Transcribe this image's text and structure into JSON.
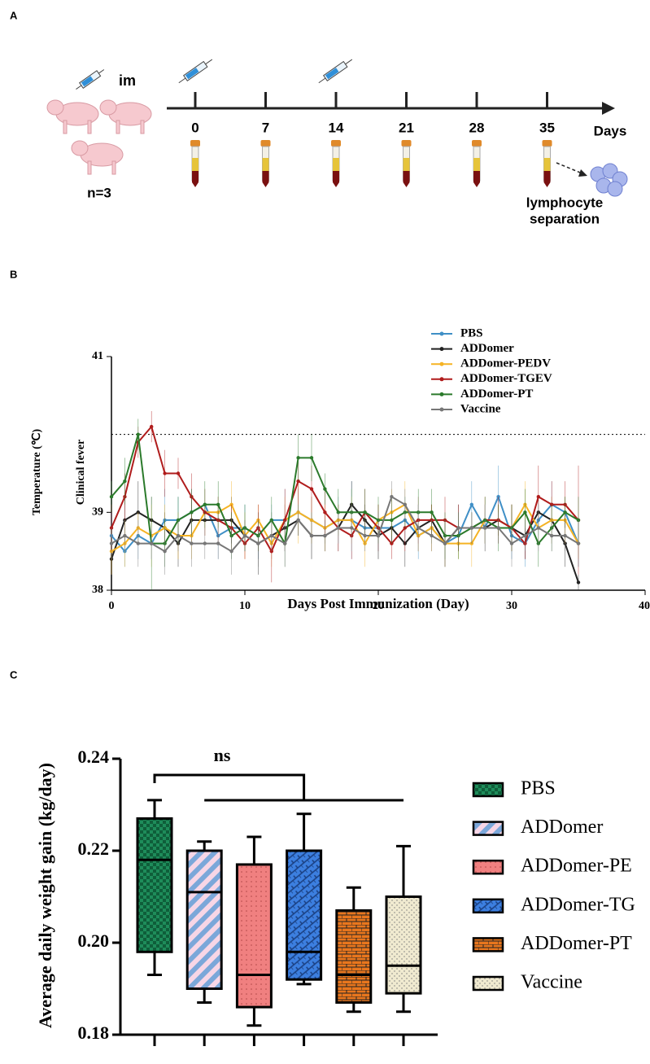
{
  "panel_labels": [
    "A",
    "B",
    "C"
  ],
  "diagram": {
    "route": "im",
    "group_size": "n=3",
    "days": [
      0,
      7,
      14,
      21,
      28,
      35
    ],
    "axis_label": "Days",
    "endpoint": [
      "lymphocyte",
      "separation"
    ]
  },
  "chart_data": [
    {
      "type": "line",
      "xlabel": "Days Post Immunization (Day)",
      "ylabel": "Temperature (℃)",
      "threshold": 40,
      "threshold_label": "Clinical fever",
      "xlim": [
        0,
        40
      ],
      "xticks": [
        0,
        10,
        20,
        30,
        40
      ],
      "ylim": [
        38,
        41
      ],
      "yticks": [
        38,
        39,
        41
      ],
      "x": [
        0,
        1,
        2,
        3,
        4,
        5,
        6,
        7,
        8,
        9,
        10,
        11,
        12,
        13,
        14,
        15,
        16,
        17,
        18,
        19,
        20,
        21,
        22,
        23,
        24,
        25,
        26,
        27,
        28,
        29,
        30,
        31,
        32,
        33,
        34,
        35
      ],
      "series": [
        {
          "name": "PBS",
          "color": "#3f8fc6",
          "values": [
            38.7,
            38.5,
            38.7,
            38.6,
            38.9,
            38.9,
            39.0,
            39.1,
            38.7,
            38.8,
            38.8,
            38.7,
            38.9,
            38.9,
            39.0,
            38.9,
            38.8,
            38.9,
            38.9,
            38.8,
            38.8,
            38.8,
            38.9,
            38.7,
            38.8,
            38.6,
            38.7,
            39.1,
            38.8,
            39.2,
            38.7,
            38.6,
            38.9,
            39.1,
            39.0,
            38.6
          ],
          "errors": [
            0.3,
            0.2,
            0.3,
            0.2,
            0.4,
            0.3,
            0.3,
            0.2,
            0.3,
            0.2,
            0.3,
            0.3,
            0.2,
            0.4,
            0.3,
            0.3,
            0.2,
            0.3,
            0.5,
            0.2,
            0.3,
            0.2,
            0.3,
            0.3,
            0.2,
            0.3,
            0.2,
            0.3,
            0.2,
            0.4,
            0.3,
            0.3,
            0.2,
            0.3,
            0.2,
            0.3
          ]
        },
        {
          "name": "ADDomer",
          "color": "#222222",
          "values": [
            38.4,
            38.9,
            39.0,
            38.9,
            38.8,
            38.6,
            38.9,
            38.9,
            38.9,
            38.9,
            38.7,
            38.6,
            38.7,
            38.8,
            38.9,
            38.7,
            38.7,
            38.8,
            39.1,
            38.9,
            38.7,
            38.8,
            38.6,
            38.8,
            38.9,
            38.6,
            38.8,
            38.8,
            38.8,
            38.9,
            38.8,
            38.7,
            39.0,
            38.9,
            38.6,
            38.1
          ],
          "errors": [
            0.2,
            0.3,
            0.4,
            0.3,
            0.2,
            0.3,
            0.3,
            0.2,
            0.3,
            0.3,
            0.2,
            0.4,
            0.3,
            0.3,
            0.2,
            0.3,
            0.2,
            0.3,
            0.3,
            0.2,
            0.3,
            0.2,
            0.3,
            0.3,
            0.2,
            0.3,
            0.3,
            0.2,
            0.3,
            0.2,
            0.3,
            0.3,
            0.2,
            0.3,
            0.3,
            0.1
          ]
        },
        {
          "name": "ADDomer-PEDV",
          "color": "#f5b324",
          "values": [
            38.5,
            38.6,
            38.8,
            38.7,
            38.8,
            38.7,
            38.7,
            39.0,
            39.0,
            39.1,
            38.7,
            38.9,
            38.6,
            38.9,
            39.0,
            38.9,
            38.8,
            38.9,
            38.9,
            38.6,
            38.9,
            39.0,
            39.1,
            38.7,
            38.8,
            38.6,
            38.6,
            38.6,
            38.9,
            38.9,
            38.8,
            39.1,
            38.8,
            38.9,
            38.9,
            38.6
          ],
          "errors": [
            0.3,
            0.3,
            0.2,
            0.4,
            0.3,
            0.3,
            0.3,
            0.3,
            0.2,
            0.3,
            0.3,
            0.2,
            0.3,
            0.3,
            0.4,
            0.3,
            0.3,
            0.2,
            0.3,
            0.3,
            0.2,
            0.3,
            0.3,
            0.2,
            0.3,
            0.3,
            0.2,
            0.3,
            0.3,
            0.2,
            0.3,
            0.3,
            0.2,
            0.3,
            0.3,
            0.2
          ]
        },
        {
          "name": "ADDomer-TGEV",
          "color": "#b01c1c",
          "values": [
            38.8,
            39.2,
            39.9,
            40.1,
            39.5,
            39.5,
            39.2,
            39.0,
            38.9,
            38.8,
            38.6,
            38.8,
            38.5,
            38.9,
            39.4,
            39.3,
            39.0,
            38.8,
            38.7,
            39.0,
            38.8,
            38.6,
            38.8,
            38.9,
            38.9,
            38.9,
            38.8,
            38.8,
            38.9,
            38.9,
            38.8,
            38.6,
            39.2,
            39.1,
            39.1,
            38.9
          ],
          "errors": [
            0.3,
            0.3,
            0.2,
            0.2,
            0.3,
            0.2,
            0.3,
            0.3,
            0.3,
            0.3,
            0.2,
            0.3,
            0.4,
            0.4,
            0.3,
            0.3,
            0.3,
            0.3,
            0.3,
            0.3,
            0.3,
            0.2,
            0.3,
            0.3,
            0.2,
            0.3,
            0.3,
            0.2,
            0.3,
            0.3,
            0.3,
            0.2,
            0.4,
            0.3,
            0.3,
            0.7
          ]
        },
        {
          "name": "ADDomer-PT",
          "color": "#2b7a2b",
          "values": [
            39.2,
            39.4,
            40.0,
            38.6,
            38.6,
            38.9,
            39.0,
            39.1,
            39.1,
            38.7,
            38.8,
            38.7,
            38.9,
            38.6,
            39.7,
            39.7,
            39.3,
            39.0,
            39.0,
            39.0,
            38.9,
            38.9,
            39.0,
            39.0,
            39.0,
            38.7,
            38.7,
            38.8,
            38.9,
            38.8,
            38.8,
            39.0,
            38.6,
            38.8,
            39.0,
            38.9
          ],
          "errors": [
            0.2,
            0.3,
            0.2,
            0.6,
            0.3,
            0.3,
            0.3,
            0.3,
            0.3,
            0.3,
            0.3,
            0.2,
            0.3,
            0.3,
            0.3,
            0.3,
            0.2,
            0.3,
            0.3,
            0.3,
            0.3,
            0.3,
            0.2,
            0.3,
            0.3,
            0.3,
            0.3,
            0.2,
            0.3,
            0.3,
            0.3,
            0.3,
            0.3,
            0.3,
            0.2,
            0.3
          ]
        },
        {
          "name": "Vaccine",
          "color": "#777777",
          "values": [
            38.6,
            38.7,
            38.6,
            38.6,
            38.5,
            38.7,
            38.6,
            38.6,
            38.6,
            38.5,
            38.7,
            38.6,
            38.7,
            38.6,
            38.9,
            38.7,
            38.7,
            38.8,
            38.8,
            38.7,
            38.7,
            39.2,
            39.1,
            38.8,
            38.7,
            38.6,
            38.8,
            38.8,
            38.8,
            38.8,
            38.6,
            38.7,
            38.8,
            38.7,
            38.7,
            38.6
          ],
          "errors": [
            0.2,
            0.2,
            0.3,
            0.2,
            0.3,
            0.2,
            0.3,
            0.2,
            0.2,
            0.3,
            0.2,
            0.3,
            0.2,
            0.3,
            0.2,
            0.3,
            0.2,
            0.2,
            0.3,
            0.2,
            0.3,
            0.2,
            0.2,
            0.3,
            0.2,
            0.3,
            0.2,
            0.2,
            0.3,
            0.2,
            0.3,
            0.2,
            0.3,
            0.2,
            0.2,
            0.3
          ]
        }
      ]
    },
    {
      "type": "box",
      "ylabel": "Average daily weight gain (kg/day)",
      "significance": "ns",
      "ylim": [
        0.18,
        0.24
      ],
      "yticks": [
        0.18,
        {
          "value": 0.2,
          "label": "0.20"
        },
        0.22,
        0.24
      ],
      "series": [
        {
          "name": "PBS",
          "color": "#1e8c5a",
          "min": 0.193,
          "q1": 0.198,
          "median": 0.218,
          "q3": 0.227,
          "max": 0.231
        },
        {
          "name": "ADDomer",
          "color": "#f7d6e6",
          "min": 0.187,
          "q1": 0.19,
          "median": 0.211,
          "q3": 0.22,
          "max": 0.222
        },
        {
          "name": "ADDomer-PE",
          "color": "#f08080",
          "min": 0.182,
          "q1": 0.186,
          "median": 0.193,
          "q3": 0.217,
          "max": 0.223
        },
        {
          "name": "ADDomer-TG",
          "color": "#3c7fe0",
          "min": 0.191,
          "q1": 0.192,
          "median": 0.198,
          "q3": 0.22,
          "max": 0.228
        },
        {
          "name": "ADDomer-PT",
          "color": "#e8761d",
          "min": 0.185,
          "q1": 0.187,
          "median": 0.193,
          "q3": 0.207,
          "max": 0.212
        },
        {
          "name": "Vaccine",
          "color": "#f0ead0",
          "min": 0.185,
          "q1": 0.189,
          "median": 0.195,
          "q3": 0.21,
          "max": 0.221
        }
      ]
    }
  ]
}
